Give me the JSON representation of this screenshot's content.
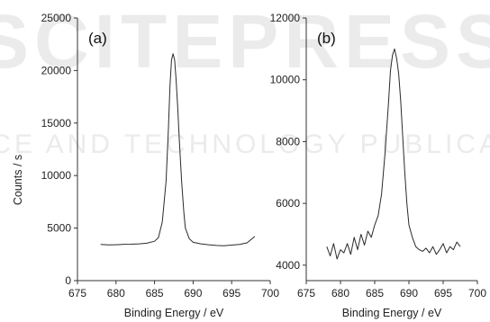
{
  "watermark": {
    "line1": "SCITEPRESS",
    "line2": "SCIENCE AND TECHNOLOGY PUBLICATIONS"
  },
  "chart_data": [
    {
      "type": "line",
      "panel_label": "(a)",
      "xlabel": "Binding Energy / eV",
      "ylabel": "Counts / s",
      "xlim": [
        675,
        700
      ],
      "ylim": [
        0,
        25000
      ],
      "xticks": [
        675,
        680,
        685,
        690,
        695,
        700
      ],
      "yticks": [
        0,
        5000,
        10000,
        15000,
        20000,
        25000
      ],
      "grid": false,
      "series": [
        {
          "x": [
            678,
            679,
            680,
            681,
            682,
            683,
            684,
            685,
            685.5,
            686,
            686.5,
            686.8,
            687,
            687.2,
            687.4,
            687.6,
            687.8,
            688,
            688.2,
            688.5,
            688.8,
            689,
            689.5,
            690,
            691,
            692,
            693,
            694,
            695,
            696,
            697,
            697.5,
            698
          ],
          "y": [
            3450,
            3400,
            3420,
            3460,
            3470,
            3500,
            3560,
            3750,
            4100,
            5600,
            9500,
            14500,
            18500,
            21000,
            21600,
            21000,
            19000,
            16500,
            13500,
            9500,
            6500,
            5000,
            4000,
            3650,
            3500,
            3420,
            3350,
            3320,
            3380,
            3450,
            3600,
            3900,
            4200
          ]
        }
      ]
    },
    {
      "type": "line",
      "panel_label": "(b)",
      "xlabel": "Binding Energy / eV",
      "ylabel": "",
      "xlim": [
        675,
        700
      ],
      "ylim": [
        3500,
        12000
      ],
      "xticks": [
        675,
        680,
        685,
        690,
        695,
        700
      ],
      "yticks": [
        4000,
        6000,
        8000,
        10000,
        12000
      ],
      "grid": false,
      "series": [
        {
          "x": [
            678,
            678.5,
            679,
            679.5,
            680,
            680.5,
            681,
            681.5,
            682,
            682.5,
            683,
            683.5,
            684,
            684.5,
            685,
            685.5,
            686,
            686.5,
            687,
            687.3,
            687.6,
            687.9,
            688.2,
            688.5,
            688.8,
            689.1,
            689.4,
            689.7,
            690,
            690.5,
            691,
            691.5,
            692,
            692.5,
            693,
            693.5,
            694,
            694.5,
            695,
            695.5,
            696,
            696.5,
            697,
            697.5
          ],
          "y": [
            4600,
            4300,
            4700,
            4200,
            4500,
            4400,
            4700,
            4350,
            4900,
            4500,
            5000,
            4650,
            5100,
            4900,
            5300,
            5600,
            6300,
            7600,
            9200,
            10300,
            10800,
            11000,
            10700,
            10200,
            9300,
            8100,
            7000,
            6000,
            5300,
            4900,
            4600,
            4500,
            4450,
            4550,
            4400,
            4600,
            4350,
            4500,
            4700,
            4400,
            4600,
            4500,
            4750,
            4600
          ]
        }
      ]
    }
  ]
}
